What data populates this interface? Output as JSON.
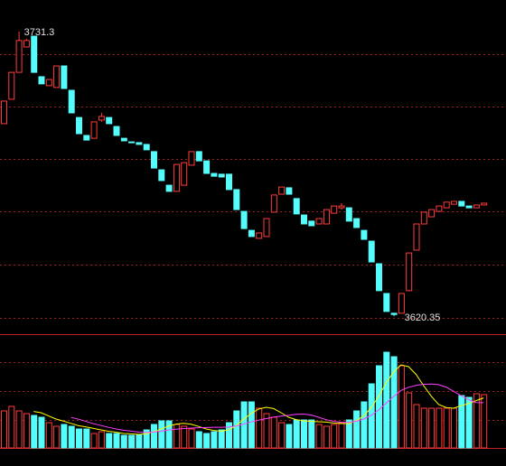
{
  "chart_data": [
    {
      "type": "candlestick",
      "open": [
        3695.4,
        3704.9,
        3715.4,
        3725.3,
        3729.5,
        3713.7,
        3710.2,
        3709.5,
        3717.9,
        3708.4,
        3697.8,
        3690.8,
        3689.7,
        3696.8,
        3697.8,
        3694.3,
        3689.7,
        3688.3,
        3688.0,
        3687.3,
        3684.5,
        3677.4,
        3671.4,
        3669.0,
        3671.4,
        3679.2,
        3684.5,
        3680.9,
        3676.0,
        3675.7,
        3675.7,
        3669.7,
        3661.2,
        3653.8,
        3650.7,
        3651.4,
        3660.9,
        3667.9,
        3670.4,
        3666.2,
        3659.8,
        3657.4,
        3656.3,
        3656.3,
        3660.5,
        3662.6,
        3662.6,
        3658.4,
        3653.8,
        3649.6,
        3640.8,
        3629.2,
        3621.5,
        3621.5,
        3630.3,
        3646.1,
        3656.3,
        3659.1,
        3661.2,
        3662.6,
        3664.0,
        3665.1,
        3663.3,
        3662.6,
        3663.7
      ],
      "close": [
        3704.2,
        3715.4,
        3727.8,
        3727.8,
        3715.4,
        3710.9,
        3712.6,
        3717.9,
        3709.1,
        3699.6,
        3691.5,
        3689.0,
        3696.1,
        3698.2,
        3695.4,
        3690.8,
        3688.7,
        3688.0,
        3687.3,
        3685.2,
        3678.1,
        3673.2,
        3669.0,
        3679.5,
        3680.2,
        3684.5,
        3680.9,
        3676.0,
        3674.9,
        3674.6,
        3669.7,
        3661.9,
        3654.5,
        3651.4,
        3652.8,
        3658.4,
        3667.6,
        3670.7,
        3667.9,
        3660.2,
        3656.3,
        3655.6,
        3658.4,
        3661.9,
        3663.3,
        3663.3,
        3657.4,
        3654.9,
        3650.3,
        3641.5,
        3630.3,
        3622.2,
        3621.0,
        3629.2,
        3645.0,
        3656.3,
        3660.9,
        3661.9,
        3663.3,
        3664.8,
        3665.1,
        3663.3,
        3662.6,
        3663.7,
        3664.4
      ],
      "high": [
        3704.2,
        3715.4,
        3731.3,
        3728.5,
        3729.51,
        3713.7,
        3712.6,
        3717.9,
        3717.9,
        3708.4,
        3697.8,
        3690.8,
        3696.1,
        3699.6,
        3697.8,
        3694.3,
        3689.7,
        3688.3,
        3688.0,
        3687.3,
        3684.5,
        3677.4,
        3671.4,
        3679.5,
        3680.2,
        3684.5,
        3684.5,
        3680.9,
        3676.0,
        3675.7,
        3675.7,
        3669.7,
        3661.2,
        3653.8,
        3652.8,
        3658.4,
        3667.6,
        3670.7,
        3670.4,
        3666.2,
        3659.8,
        3657.4,
        3658.4,
        3661.9,
        3663.3,
        3664.4,
        3662.6,
        3658.4,
        3653.8,
        3649.6,
        3640.8,
        3629.2,
        3621.5,
        3629.2,
        3645.0,
        3656.3,
        3660.9,
        3661.9,
        3663.3,
        3664.8,
        3665.1,
        3665.1,
        3663.3,
        3663.7,
        3664.4
      ],
      "low": [
        3695.4,
        3704.9,
        3715.4,
        3725.3,
        3715.4,
        3710.9,
        3710.2,
        3709.5,
        3709.1,
        3699.6,
        3691.5,
        3689.0,
        3689.7,
        3696.1,
        3695.4,
        3690.8,
        3688.7,
        3688.0,
        3687.3,
        3685.2,
        3678.1,
        3673.2,
        3669.0,
        3669.0,
        3671.4,
        3679.2,
        3680.9,
        3676.0,
        3674.9,
        3674.6,
        3669.7,
        3661.9,
        3654.5,
        3651.4,
        3650.7,
        3651.4,
        3660.9,
        3667.9,
        3667.9,
        3660.2,
        3656.3,
        3655.6,
        3656.3,
        3656.3,
        3660.5,
        3661.9,
        3657.4,
        3654.9,
        3650.3,
        3641.5,
        3630.3,
        3622.2,
        3620.35,
        3621.5,
        3630.3,
        3646.1,
        3656.3,
        3659.1,
        3661.2,
        3662.6,
        3664.0,
        3663.3,
        3662.6,
        3662.6,
        3663.7
      ],
      "up_color": "#ff3c3c",
      "down_color": "#54fcfc",
      "ylim": [
        3613.35,
        3743.6
      ],
      "grid_lines": [
        3722.5,
        3702.1,
        3681.7,
        3661.2,
        3640.5,
        3619.7
      ]
    },
    {
      "type": "bar",
      "values": [
        41,
        46,
        41,
        38,
        36,
        34,
        28,
        24,
        26,
        24,
        21,
        21,
        16,
        18,
        16,
        16,
        14,
        14,
        15,
        20,
        26,
        30,
        30,
        26,
        24,
        21,
        18,
        16,
        18,
        20,
        28,
        41,
        51,
        51,
        44,
        38,
        34,
        28,
        26,
        31,
        31,
        31,
        26,
        24,
        26,
        28,
        31,
        41,
        51,
        71,
        91,
        106,
        101,
        91,
        61,
        48,
        44,
        44,
        44,
        44,
        44,
        58,
        56,
        60,
        59
      ],
      "ma5": [
        null,
        null,
        null,
        null,
        40.4,
        39,
        35.4,
        32,
        29.6,
        27.2,
        24.6,
        23.2,
        21.6,
        20,
        18.4,
        17.4,
        16,
        15.6,
        15,
        15.8,
        17.8,
        21,
        24.2,
        26.4,
        27.2,
        26.2,
        23.8,
        21,
        19.4,
        18.6,
        20,
        24.6,
        31.6,
        38.2,
        43,
        45,
        43.6,
        39,
        34,
        31.4,
        30,
        29.4,
        29,
        28.6,
        27.6,
        27,
        27,
        30,
        35.4,
        44.4,
        57,
        72,
        84,
        92,
        90,
        81.4,
        69,
        57.6,
        48.2,
        44.8,
        44,
        46.8,
        49.2,
        52.4,
        55.4
      ],
      "ma10": [
        null,
        null,
        null,
        null,
        null,
        null,
        null,
        null,
        null,
        33.8,
        31.8,
        29.3,
        26.8,
        24.8,
        22.8,
        21,
        19.6,
        18.6,
        17.5,
        17.1,
        17.6,
        18.5,
        19.9,
        20.7,
        21.5,
        22,
        22.4,
        22.6,
        22.9,
        22.9,
        23.1,
        24.2,
        26.3,
        28.8,
        30.8,
        32.5,
        34.1,
        35.3,
        36.1,
        37.2,
        37.5,
        36.5,
        34,
        31.3,
        29.5,
        28.5,
        28.2,
        29.5,
        32,
        36,
        42,
        49.5,
        57,
        63.7,
        67.2,
        69.2,
        70.5,
        70.8,
        70.1,
        67.4,
        62.7,
        57.9,
        53.4,
        50.3,
        50.1
      ],
      "ma5_color": "#ffff00",
      "ma10_color": "#ff40ff",
      "ylim": [
        0,
        126
      ],
      "grid_lines": [
        31,
        63,
        95
      ]
    }
  ]
}
